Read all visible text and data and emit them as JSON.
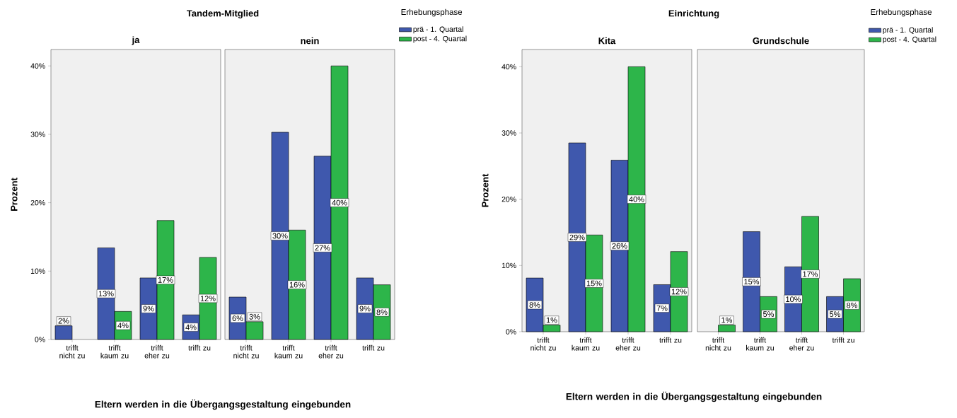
{
  "chart_data": [
    {
      "type": "bar",
      "title": "Tandem-Mitglied",
      "subtitle": "ja",
      "xlabel": "Eltern werden in die Übergangsgestaltung eingebunden",
      "ylabel": "Prozent",
      "categories": [
        "trifft nicht zu",
        "trifft kaum zu",
        "trifft eher zu",
        "trifft zu"
      ],
      "ylim": [
        0,
        42.4
      ],
      "yticks": [
        {
          "value": 0,
          "label": "0%"
        },
        {
          "value": 10,
          "label": "10%"
        },
        {
          "value": 20,
          "label": "20%"
        },
        {
          "value": 30,
          "label": "30%"
        },
        {
          "value": 40,
          "label": "40%"
        }
      ],
      "series": [
        {
          "color": "#3f58ad",
          "values": [
            2,
            13.4,
            9,
            3.6
          ],
          "value_labels": [
            "2%",
            "13%",
            "9%",
            "4%"
          ]
        },
        {
          "color": "#2db54a",
          "values": [
            null,
            4.1,
            17.4,
            12
          ],
          "value_labels": [
            null,
            "4%",
            "17%",
            "12%"
          ]
        }
      ]
    },
    {
      "type": "bar",
      "subtitle": "nein",
      "categories": [
        "trifft nicht zu",
        "trifft kaum zu",
        "trifft eher zu",
        "trifft zu"
      ],
      "ylim": [
        0,
        42.4
      ],
      "tick_labels": "x",
      "legend": "right",
      "legend_title": "Erhebungsphase",
      "series": [
        {
          "name": "prä - 1. Quartal",
          "color": "#3f58ad",
          "values": [
            6.2,
            30.3,
            26.8,
            9
          ],
          "value_labels": [
            "6%",
            "30%",
            "27%",
            "9%"
          ]
        },
        {
          "name": "post - 4. Quartal",
          "color": "#2db54a",
          "values": [
            2.6,
            16,
            40,
            8
          ],
          "value_labels": [
            "3%",
            "16%",
            "40%",
            "8%"
          ]
        }
      ]
    },
    {
      "type": "bar",
      "title": "Einrichtung",
      "subtitle": "Kita",
      "xlabel": "Eltern werden in die Übergangsgestaltung eingebunden",
      "ylabel": "Prozent",
      "categories": [
        "trifft nicht zu",
        "trifft kaum zu",
        "trifft eher zu",
        "trifft zu"
      ],
      "ylim": [
        0,
        42.6
      ],
      "yticks": [
        {
          "value": 0,
          "label": "0%"
        },
        {
          "value": 10,
          "label": "10%"
        },
        {
          "value": 20,
          "label": "20%"
        },
        {
          "value": 30,
          "label": "30%"
        },
        {
          "value": 40,
          "label": "40%"
        }
      ],
      "series": [
        {
          "color": "#3f58ad",
          "values": [
            8.1,
            28.5,
            25.9,
            7.1
          ],
          "value_labels": [
            "8%",
            "29%",
            "26%",
            "7%"
          ]
        },
        {
          "color": "#2db54a",
          "values": [
            1,
            14.6,
            40,
            12.1
          ],
          "value_labels": [
            "1%",
            "15%",
            "40%",
            "12%"
          ]
        }
      ]
    },
    {
      "type": "bar",
      "subtitle": "Grundschule",
      "categories": [
        "trifft nicht zu",
        "trifft kaum zu",
        "trifft eher zu",
        "trifft zu"
      ],
      "ylim": [
        0,
        42.6
      ],
      "tick_labels": "x",
      "legend": "right",
      "legend_title": "Erhebungsphase",
      "series": [
        {
          "name": "prä - 1. Quartal",
          "color": "#3f58ad",
          "values": [
            null,
            15.1,
            9.8,
            5.3
          ],
          "value_labels": [
            null,
            "15%",
            "10%",
            "5%"
          ]
        },
        {
          "name": "post - 4. Quartal",
          "color": "#2db54a",
          "values": [
            1,
            5.3,
            17.4,
            8
          ],
          "value_labels": [
            "1%",
            "5%",
            "17%",
            "8%"
          ]
        }
      ]
    }
  ]
}
